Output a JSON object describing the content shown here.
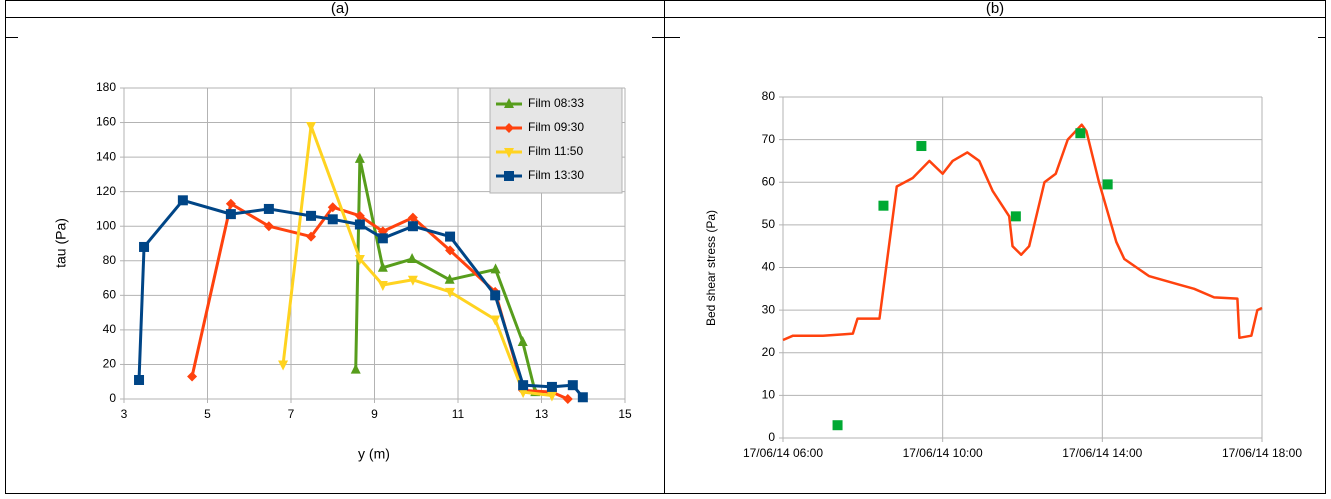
{
  "chart_data": [
    {
      "type": "line",
      "title": "(a)",
      "x_label": "y (m)",
      "y_label": "tau (Pa)",
      "xlim": [
        3,
        15
      ],
      "xticks": [
        3,
        5,
        7,
        9,
        11,
        13,
        15
      ],
      "ylim": [
        0,
        180
      ],
      "yticks": [
        0,
        20,
        40,
        60,
        80,
        100,
        120,
        140,
        160,
        180
      ],
      "grid": true,
      "legend": "upper right",
      "series": [
        {
          "name": "Film 08:33",
          "color": "#579d1c",
          "marker": "triangle-up",
          "x": [
            8.55,
            8.65,
            9.2,
            9.9,
            10.8,
            11.9,
            12.55,
            12.85
          ],
          "values": [
            17,
            139,
            76,
            81,
            69,
            75,
            33,
            4
          ]
        },
        {
          "name": "Film 09:30",
          "color": "#ff420e",
          "marker": "diamond",
          "x": [
            4.63,
            5.56,
            6.47,
            7.48,
            8.0,
            8.65,
            9.2,
            9.92,
            10.81,
            11.89,
            12.56,
            13.25,
            13.63
          ],
          "values": [
            13,
            113,
            100,
            94,
            111,
            106,
            97,
            105,
            86,
            62,
            5,
            4,
            0
          ]
        },
        {
          "name": "Film 11:50",
          "color": "#ffd320",
          "marker": "triangle-down",
          "x": [
            6.81,
            7.48,
            8.65,
            9.2,
            9.92,
            10.81,
            11.89,
            12.56,
            13.25
          ],
          "values": [
            20,
            158,
            81,
            66,
            69,
            62,
            46,
            4,
            2
          ]
        },
        {
          "name": "Film 13:30",
          "color": "#004586",
          "marker": "square",
          "x": [
            3.36,
            3.48,
            4.41,
            5.56,
            6.47,
            7.48,
            8.0,
            8.65,
            9.2,
            9.92,
            10.81,
            11.89,
            12.56,
            13.25,
            13.75,
            13.99
          ],
          "values": [
            11,
            88,
            115,
            107,
            110,
            106,
            104,
            101,
            93,
            100,
            94,
            60,
            8,
            7,
            8,
            1
          ]
        }
      ]
    },
    {
      "type": "line",
      "title": "(b)",
      "y_label": "Bed shear stress (Pa)",
      "xlim": [
        "17/06/14 06:00",
        "17/06/14 18:00"
      ],
      "xticks": [
        "17/06/14 06:00",
        "17/06/14 10:00",
        "17/06/14 14:00",
        "17/06/14 18:00"
      ],
      "ylim": [
        0,
        80
      ],
      "yticks": [
        0,
        10,
        20,
        30,
        40,
        50,
        60,
        70,
        80
      ],
      "grid": true,
      "series": [
        {
          "color": "#ff420e",
          "marker": "none",
          "x": [
            "17/06/14 06:00",
            "17/06/14 06:15",
            "17/06/14 06:30",
            "17/06/14 07:00",
            "17/06/14 07:30",
            "17/06/14 07:45",
            "17/06/14 07:52",
            "17/06/14 08:10",
            "17/06/14 08:25",
            "17/06/14 08:51",
            "17/06/14 09:15",
            "17/06/14 09:40",
            "17/06/14 10:00",
            "17/06/14 10:15",
            "17/06/14 10:37",
            "17/06/14 10:55",
            "17/06/14 11:15",
            "17/06/14 11:40",
            "17/06/14 11:45",
            "17/06/14 11:58",
            "17/06/14 12:10",
            "17/06/14 12:33",
            "17/06/14 12:50",
            "17/06/14 13:08",
            "17/06/14 13:29",
            "17/06/14 13:36",
            "17/06/14 13:55",
            "17/06/14 14:21",
            "17/06/14 14:33",
            "17/06/14 15:10",
            "17/06/14 15:55",
            "17/06/14 16:18",
            "17/06/14 16:48",
            "17/06/14 17:23",
            "17/06/14 17:26",
            "17/06/14 17:44",
            "17/06/14 17:53",
            "17/06/14 18:00"
          ],
          "values": [
            23,
            24,
            24,
            24,
            24.3,
            24.5,
            28,
            28,
            28,
            59,
            61,
            65,
            62,
            65,
            67,
            65,
            58,
            52,
            45,
            43,
            45,
            60,
            62,
            70,
            73.5,
            72,
            60,
            46,
            42,
            38,
            36,
            35,
            33,
            32.7,
            23.5,
            24,
            30,
            30.5
          ]
        },
        {
          "color": "#00a933",
          "marker": "square",
          "line": false,
          "x": [
            "17/06/14 07:22",
            "17/06/14 08:31",
            "17/06/14 09:28",
            "17/06/14 11:50",
            "17/06/14 13:27",
            "17/06/14 14:08"
          ],
          "values": [
            3,
            54.5,
            68.5,
            52,
            71.5,
            59.5
          ]
        }
      ]
    }
  ]
}
